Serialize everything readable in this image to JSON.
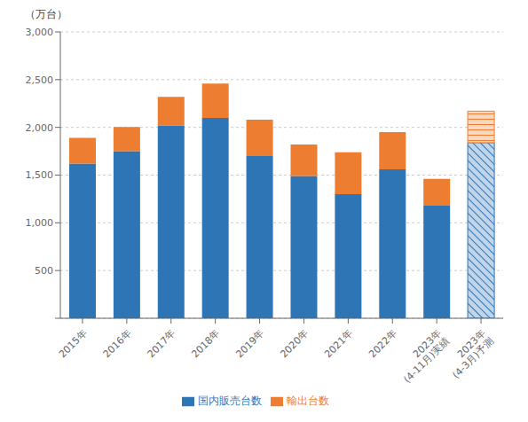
{
  "chart_data": {
    "type": "bar",
    "stacked": true,
    "categories": [
      "2015年",
      "2016年",
      "2017年",
      "2018年",
      "2019年",
      "2020年",
      "2021年",
      "2022年",
      "2023年\n(4-11月)実績",
      "2023年\n(4-3月)予測"
    ],
    "series": [
      {
        "name": "国内販売台数",
        "color": "#2e75b6",
        "values": [
          1620,
          1750,
          2020,
          2100,
          1700,
          1490,
          1300,
          1560,
          1180,
          1840
        ]
      },
      {
        "name": "輸出台数",
        "color": "#ed7d31",
        "values": [
          270,
          255,
          300,
          360,
          380,
          330,
          440,
          390,
          280,
          330
        ]
      }
    ],
    "ylabel": "（万台）",
    "ylim": [
      0,
      3000
    ],
    "yticks": [
      {
        "value": 0,
        "label": ""
      },
      500,
      {
        "value": 1000,
        "label": "1,000"
      },
      {
        "value": 1500,
        "label": "1,500"
      },
      {
        "value": 2000,
        "label": "2,000"
      },
      {
        "value": 2500,
        "label": "2,500"
      },
      {
        "value": 3000,
        "label": "3,000"
      }
    ],
    "grid": true,
    "legend": "bottom"
  }
}
